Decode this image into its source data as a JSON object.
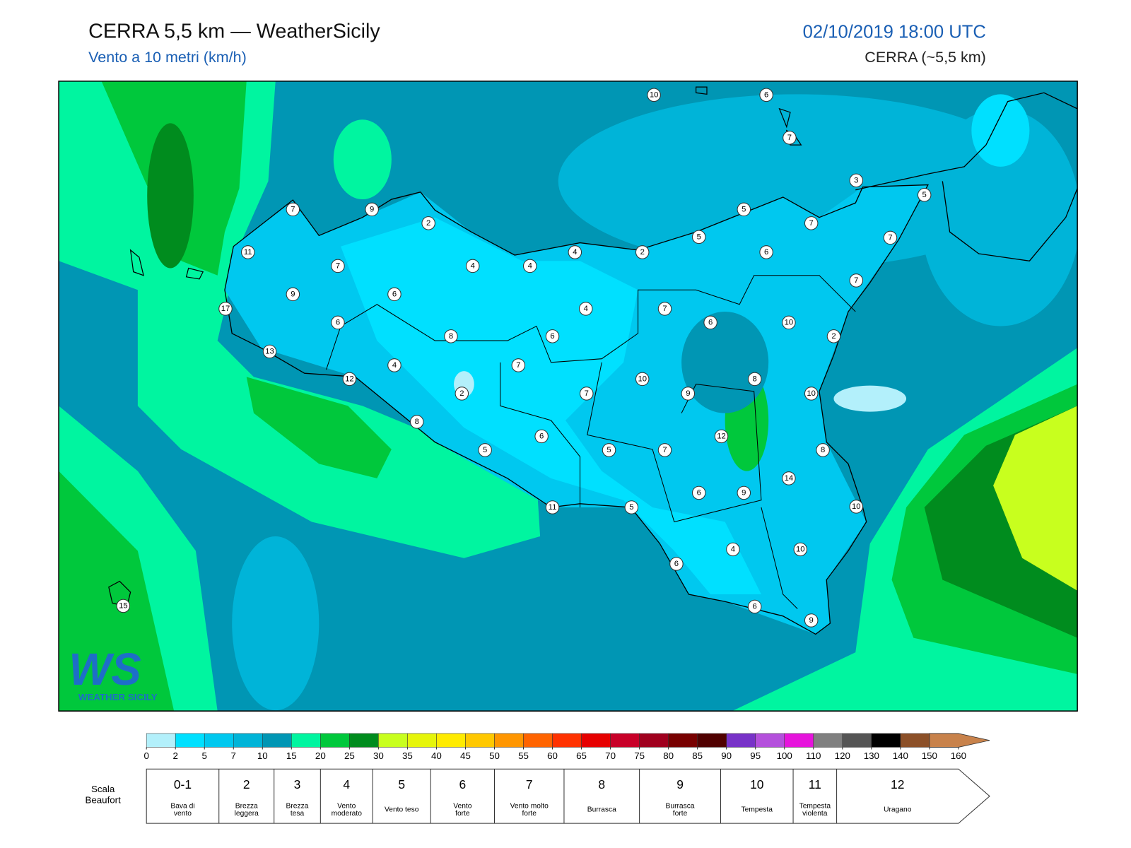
{
  "header": {
    "title": "CERRA 5,5 km — WeatherSicily",
    "subtitle": "Vento a 10 metri (km/h)",
    "datetime": "02/10/2019 18:00 UTC",
    "model": "CERRA (~5,5 km)"
  },
  "map": {
    "stations": [
      10,
      6,
      7,
      3,
      5,
      7,
      9,
      2,
      5,
      7,
      5,
      7,
      11,
      4,
      2,
      6,
      7,
      4,
      4,
      7,
      9,
      6,
      17,
      4,
      7,
      6,
      6,
      10,
      8,
      6,
      2,
      13,
      4,
      7,
      12,
      10,
      8,
      2,
      7,
      9,
      10,
      8,
      6,
      12,
      5,
      5,
      7,
      8,
      14,
      6,
      9,
      11,
      5,
      10,
      4,
      10,
      6,
      15,
      6,
      9
    ]
  },
  "colorbar": {
    "ticks": [
      0,
      2,
      5,
      7,
      10,
      15,
      20,
      25,
      30,
      35,
      40,
      45,
      50,
      55,
      60,
      65,
      70,
      75,
      80,
      85,
      90,
      95,
      100,
      110,
      120,
      130,
      140,
      150,
      160
    ],
    "colors": [
      "#b3f0fb",
      "#00e0ff",
      "#00c8ef",
      "#00b4d8",
      "#0096b4",
      "#00f5a0",
      "#00c83c",
      "#008c1e",
      "#c8ff1e",
      "#e6f50a",
      "#ffeb00",
      "#ffc800",
      "#ff9600",
      "#ff6400",
      "#ff3200",
      "#e60000",
      "#c80028",
      "#a0001e",
      "#780000",
      "#500000",
      "#7832c8",
      "#b450dc",
      "#e614dc",
      "#808080",
      "#555555",
      "#000000",
      "#8c5028",
      "#c8824b"
    ]
  },
  "beaufort": {
    "title": [
      "Scala",
      "Beaufort"
    ],
    "levels": [
      {
        "force": "0-1",
        "name": [
          "Bava di",
          "vento"
        ]
      },
      {
        "force": "2",
        "name": [
          "Brezza",
          "leggera"
        ]
      },
      {
        "force": "3",
        "name": [
          "Brezza",
          "tesa"
        ]
      },
      {
        "force": "4",
        "name": [
          "Vento",
          "moderato"
        ]
      },
      {
        "force": "5",
        "name": [
          "Vento teso"
        ]
      },
      {
        "force": "6",
        "name": [
          "Vento",
          "forte"
        ]
      },
      {
        "force": "7",
        "name": [
          "Vento molto",
          "forte"
        ]
      },
      {
        "force": "8",
        "name": [
          "Burrasca"
        ]
      },
      {
        "force": "9",
        "name": [
          "Burrasca",
          "forte"
        ]
      },
      {
        "force": "10",
        "name": [
          "Tempesta"
        ]
      },
      {
        "force": "11",
        "name": [
          "Tempesta",
          "violenta"
        ]
      },
      {
        "force": "12",
        "name": [
          "Uragano"
        ]
      }
    ]
  },
  "logo": {
    "mark": "WS",
    "text": "WEATHER SICILY"
  }
}
